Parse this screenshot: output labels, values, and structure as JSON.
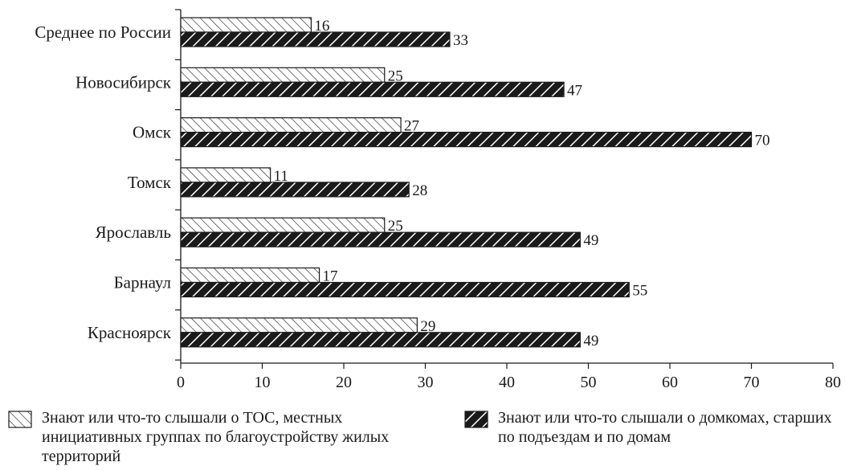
{
  "chart_data": {
    "type": "bar",
    "orientation": "horizontal",
    "categories": [
      "Среднее по России",
      "Новосибирск",
      "Омск",
      "Томск",
      "Ярославль",
      "Барнаул",
      "Красноярск"
    ],
    "series": [
      {
        "name": "Знают или что-то слышали о ТОС, местных инициативных группах по благоустройству жилых территорий",
        "values": [
          16,
          25,
          27,
          11,
          25,
          17,
          29
        ],
        "pattern": "light-hatch"
      },
      {
        "name": "Знают или что-то слышали о домкомах, старших по подъездам и по домам",
        "values": [
          33,
          47,
          70,
          28,
          49,
          55,
          49
        ],
        "pattern": "dark-hatch"
      }
    ],
    "xlim": [
      0,
      80
    ],
    "xticks": [
      0,
      10,
      20,
      30,
      40,
      50,
      60,
      70,
      80
    ],
    "title": "",
    "xlabel": "",
    "ylabel": "",
    "grid": false,
    "legend_position": "bottom",
    "colors": {
      "bar_fill": "#ffffff",
      "stroke": "#1a1a1a",
      "dark_fill": "#1a1a1a"
    }
  }
}
